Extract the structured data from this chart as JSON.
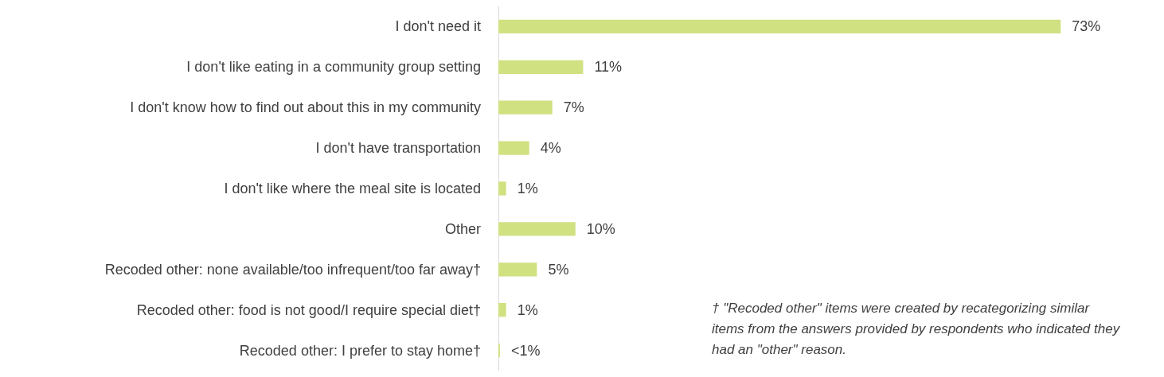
{
  "chart_data": {
    "type": "bar",
    "orientation": "horizontal",
    "categories": [
      "I don't need it",
      "I don't like eating in a community group setting",
      "I don't know how to find out about this in my community",
      "I don't have transportation",
      "I don't like where the meal site is located",
      "Other",
      "Recoded other: none available/too infrequent/too far away†",
      "Recoded other: food is not good/I require special diet†",
      "Recoded other: I prefer to stay home†"
    ],
    "values": [
      73,
      11,
      7,
      4,
      1,
      10,
      5,
      1,
      0.2
    ],
    "value_labels": [
      "73%",
      "11%",
      "7%",
      "4%",
      "1%",
      "10%",
      "5%",
      "1%",
      "<1%"
    ],
    "color": "#d0e182",
    "grid": false,
    "annotations": [
      "† \"Recoded other\" items were created by recategorizing similar items from the answers provided by respondents who indicated they had an \"other\" reason."
    ]
  }
}
